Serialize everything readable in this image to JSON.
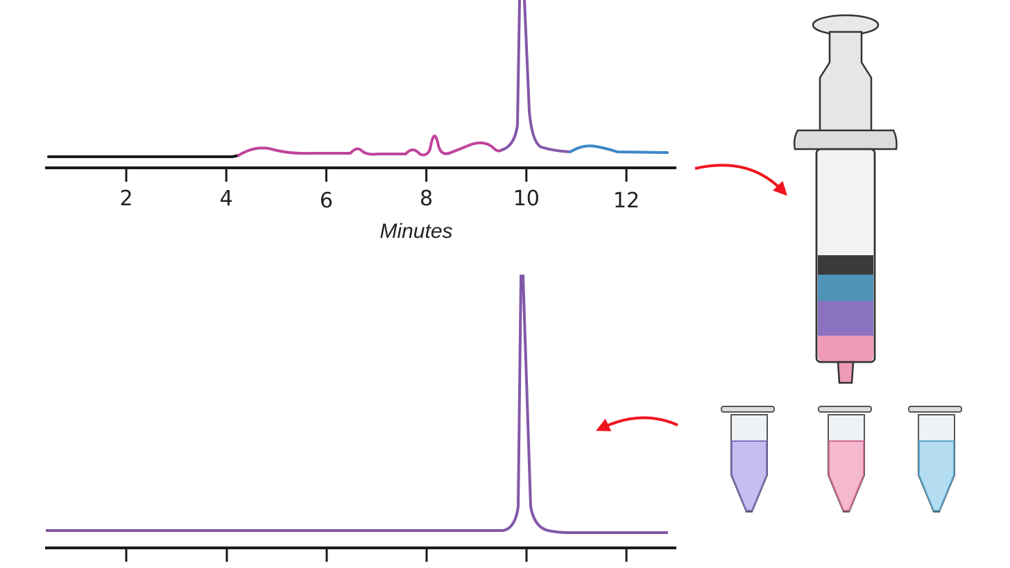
{
  "top_axis": {
    "ticks": [
      "2",
      "4",
      "6",
      "8",
      "10",
      "12"
    ],
    "label": "Minutes"
  }
}
